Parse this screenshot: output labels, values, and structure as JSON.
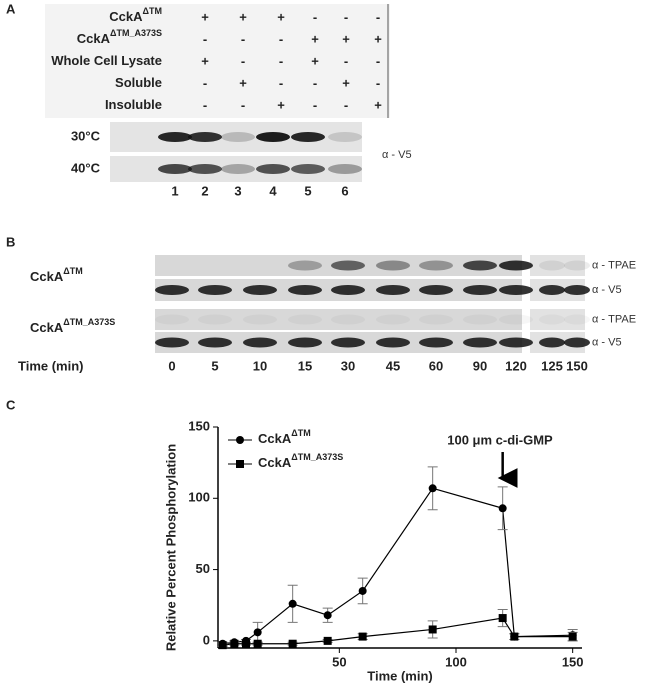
{
  "panel_a": {
    "label": "A",
    "rows": [
      {
        "label": "CckA",
        "superscript": "ΔTM",
        "signs": [
          "+",
          "+",
          "+",
          "-",
          "-",
          "-"
        ]
      },
      {
        "label": "CckA",
        "superscript": "ΔTM_A373S",
        "signs": [
          "-",
          "-",
          "-",
          "+",
          "+",
          "+"
        ]
      },
      {
        "label": "Whole Cell Lysate",
        "signs": [
          "+",
          "-",
          "-",
          "+",
          "-",
          "-"
        ]
      },
      {
        "label": "Soluble",
        "signs": [
          "-",
          "+",
          "-",
          "-",
          "+",
          "-"
        ]
      },
      {
        "label": "Insoluble",
        "signs": [
          "-",
          "-",
          "+",
          "-",
          "-",
          "+"
        ]
      }
    ],
    "blots": [
      "30°C",
      "40°C"
    ],
    "antibody": "α - V5",
    "lanes": [
      1,
      2,
      3,
      4,
      5,
      6
    ]
  },
  "panel_b": {
    "label": "B",
    "blots": [
      {
        "name": "CckA",
        "superscript": "ΔTM",
        "antibodies": [
          "α - TPAE",
          "α - V5"
        ]
      },
      {
        "name": "CckA",
        "superscript": "ΔTM_A373S",
        "antibodies": [
          "α - TPAE",
          "α - V5"
        ]
      }
    ],
    "time_label": "Time (min)",
    "times": [
      0,
      5,
      10,
      15,
      30,
      45,
      60,
      90,
      120,
      125,
      150
    ]
  },
  "chart_data": {
    "label": "C",
    "type": "line",
    "xlabel": "Time (min)",
    "ylabel": "Relative Percent Phosphorylation",
    "annotation": "100 μm c-di-GMP",
    "x": [
      0,
      5,
      10,
      15,
      30,
      45,
      60,
      90,
      120,
      125,
      150
    ],
    "series": [
      {
        "name": "CckA",
        "name_superscript": "ΔTM",
        "color": "#000000",
        "marker": "circle",
        "values": [
          -2,
          -1,
          0,
          6,
          26,
          18,
          35,
          107,
          93,
          3,
          4
        ],
        "errors": [
          1,
          1,
          1,
          7,
          13,
          5,
          9,
          15,
          15,
          2,
          4
        ]
      },
      {
        "name": "CckA",
        "name_superscript": "ΔTM_A373S",
        "color": "#000000",
        "marker": "square",
        "values": [
          -3,
          -2,
          -2,
          -2,
          -2,
          0,
          3,
          8,
          16,
          3,
          3
        ],
        "errors": [
          1,
          1,
          1,
          1,
          1,
          1,
          2,
          6,
          6,
          2,
          3
        ]
      }
    ],
    "xlim": [
      -2,
      154
    ],
    "ylim": [
      -5,
      150
    ],
    "xticks": [
      50,
      100,
      150
    ],
    "yticks": [
      0,
      50,
      100,
      150
    ]
  }
}
